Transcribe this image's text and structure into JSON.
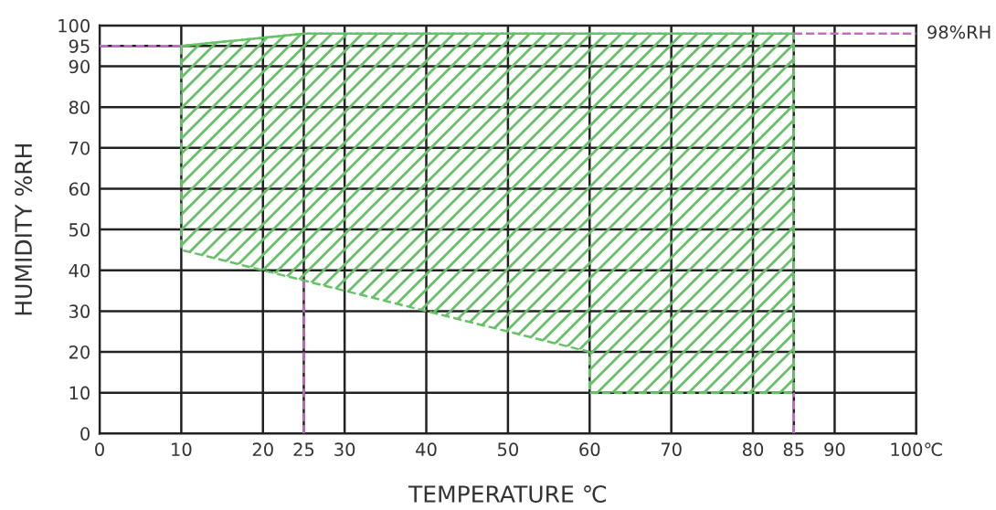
{
  "chart_data": {
    "type": "line",
    "line_style": "dashed",
    "xlabel": "TEMPERATURE ℃",
    "ylabel": "HUMIDITY %RH",
    "series": [
      {
        "color": "#66c266",
        "x": [
          10,
          20,
          25,
          40,
          60,
          60,
          85
        ],
        "values": [
          95,
          97,
          98,
          98,
          98,
          98,
          98
        ],
        "lower": [
          45,
          40,
          37.5,
          30,
          20,
          10,
          10
        ],
        "upper": [
          95,
          97,
          98,
          98,
          98,
          98,
          98
        ]
      }
    ],
    "xlim": [
      0,
      100
    ],
    "ylim": [
      0,
      100
    ],
    "xticks": [
      0,
      10,
      20,
      25,
      30,
      40,
      50,
      60,
      70,
      80,
      85,
      90,
      {
        "value": 100,
        "label": "100℃"
      }
    ],
    "yticks": [
      0,
      10,
      20,
      30,
      40,
      50,
      60,
      70,
      80,
      90,
      95,
      100
    ],
    "ref_lines": [
      {
        "axis": "y",
        "value": 95,
        "color": "#cc66cc",
        "line_style": "dashed"
      },
      {
        "axis": "y",
        "value": 98,
        "label": "98%RH",
        "color": "#cc66cc",
        "line_style": "dashed"
      },
      {
        "axis": "x",
        "value": 25,
        "color": "#cc66cc",
        "line_style": "dashed"
      },
      {
        "axis": "x",
        "value": 85,
        "color": "#cc66cc",
        "line_style": "dashed"
      }
    ],
    "grid": true
  }
}
